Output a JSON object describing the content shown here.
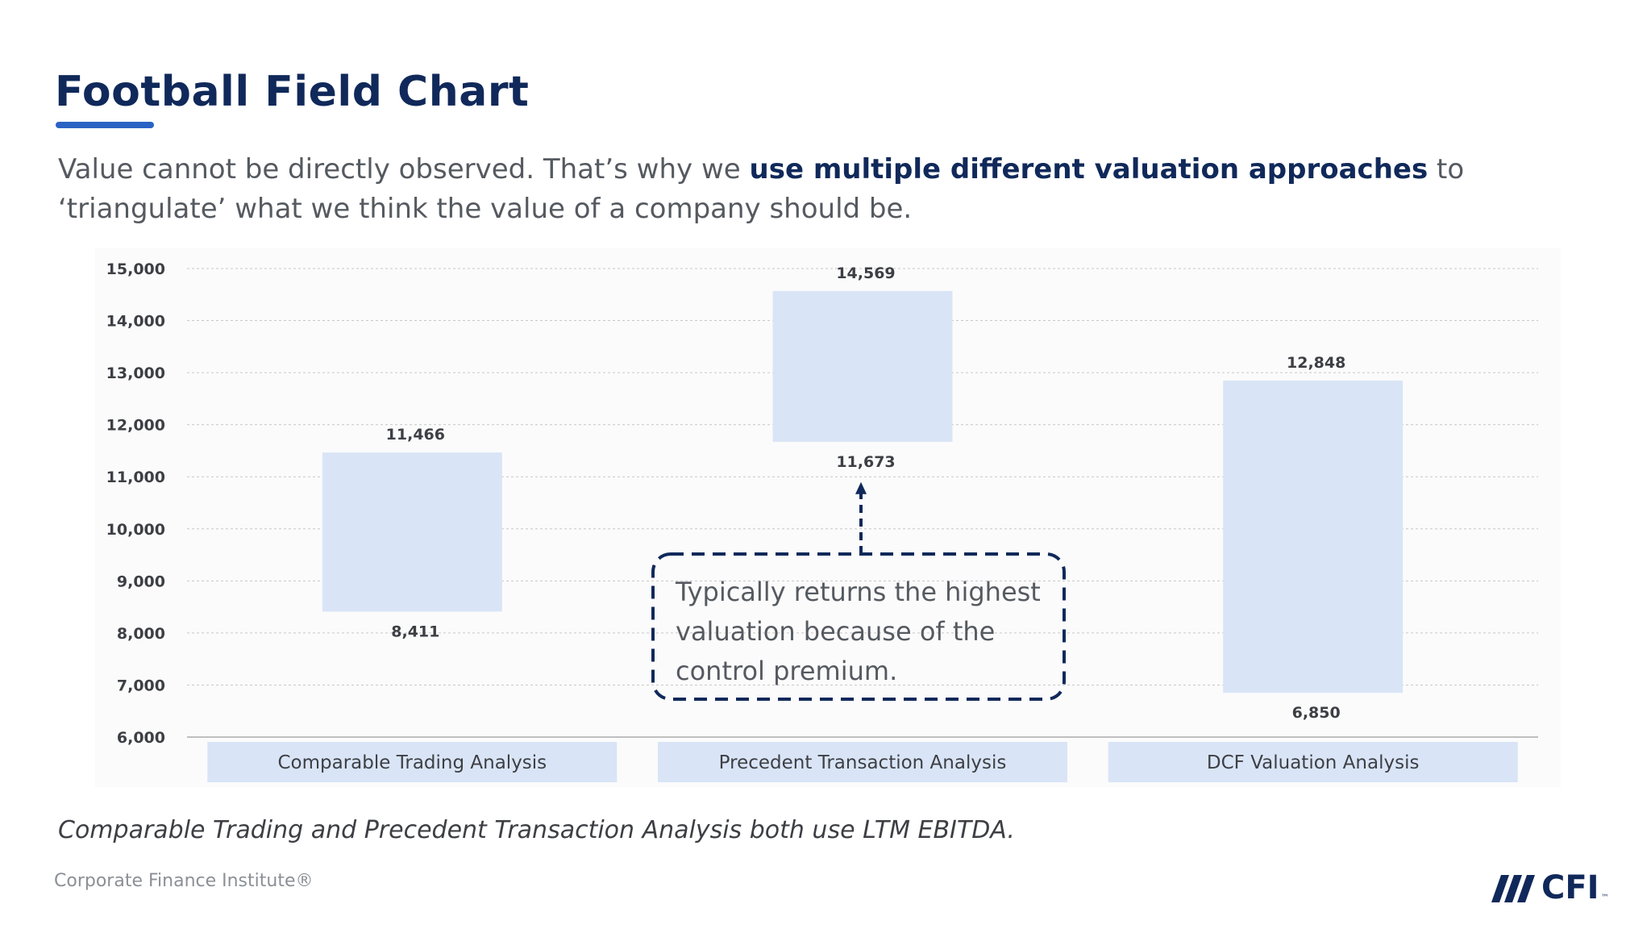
{
  "slide": {
    "title": "Football Field Chart",
    "subtitle": {
      "before": "Value cannot be directly observed. That’s why we ",
      "bold": "use multiple different valuation approaches",
      "after": " to ‘triangulate’ what we think the value of a company should be."
    },
    "note": "Comparable Trading and Precedent Transaction Analysis both use LTM EBITDA.",
    "footer": "Corporate Finance Institute®",
    "logo": {
      "text": "CFI",
      "tm": "™",
      "icon": "cfi-stripes-icon"
    }
  },
  "colors": {
    "bar": "#d9e5f6",
    "category_band": "#d9e5f6",
    "grid": "#c8c8c8",
    "axis_text": "#3d3f44",
    "callout_border": "#10295a",
    "title": "#10295a",
    "underline": "#2a63c4"
  },
  "chart_data": {
    "type": "bar",
    "subtype": "floating-range",
    "categories": [
      "Comparable Trading Analysis",
      "Precedent Transaction Analysis",
      "DCF Valuation Analysis"
    ],
    "series": [
      {
        "name": "Low",
        "values": [
          8411,
          11673,
          6850
        ]
      },
      {
        "name": "High",
        "values": [
          11466,
          14569,
          12848
        ]
      }
    ],
    "ylim": [
      6000,
      15000
    ],
    "yticks": [
      6000,
      7000,
      8000,
      9000,
      10000,
      11000,
      12000,
      13000,
      14000,
      15000
    ],
    "grid": true,
    "title": "",
    "xlabel": "",
    "ylabel": "",
    "annotation": {
      "lines": [
        "Typically returns the highest",
        "valuation because of the",
        "control premium."
      ],
      "points_to_category": "Precedent Transaction Analysis",
      "points_to_value": 11673
    }
  }
}
